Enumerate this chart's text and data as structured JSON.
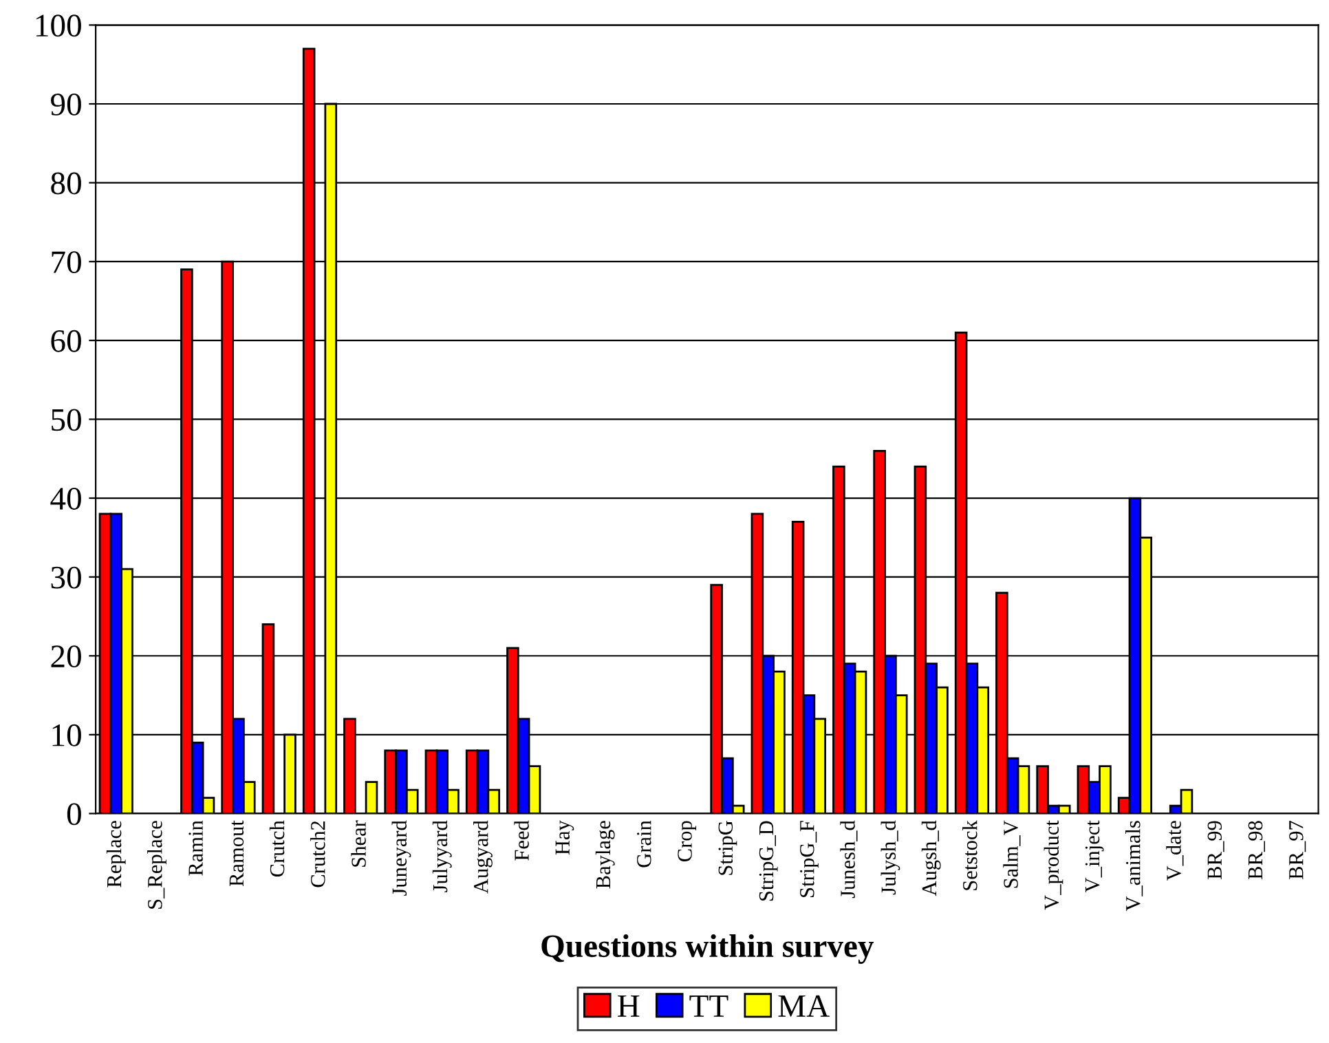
{
  "chart_data": {
    "type": "bar",
    "xlabel": "Questions within survey",
    "categories": [
      "Replace",
      "S_Replace",
      "Ramin",
      "Ramout",
      "Crutch",
      "Crutch2",
      "Shear",
      "Juneyard",
      "Julyyard",
      "Augyard",
      "Feed",
      "Hay",
      "Baylage",
      "Grain",
      "Crop",
      "StripG",
      "StripG_D",
      "StripG_F",
      "Junesh_d",
      "Julysh_d",
      "Augsh_d",
      "Setstock",
      "Salm_V",
      "V_product",
      "V_inject",
      "V_animals",
      "V_date",
      "BR_99",
      "BR_98",
      "BR_97"
    ],
    "series": [
      {
        "name": "H",
        "color": "#ff0000",
        "values": [
          38,
          null,
          69,
          70,
          24,
          97,
          12,
          8,
          8,
          8,
          21,
          null,
          null,
          null,
          null,
          29,
          38,
          37,
          44,
          46,
          44,
          61,
          28,
          6,
          6,
          2,
          null,
          null,
          null,
          null
        ]
      },
      {
        "name": "TT",
        "color": "#0000ff",
        "values": [
          38,
          null,
          9,
          12,
          null,
          null,
          null,
          8,
          8,
          8,
          12,
          null,
          null,
          null,
          null,
          7,
          20,
          15,
          19,
          20,
          19,
          19,
          7,
          1,
          4,
          40,
          1,
          null,
          null,
          null
        ]
      },
      {
        "name": "MA",
        "color": "#ffff00",
        "values": [
          31,
          null,
          2,
          4,
          10,
          90,
          4,
          3,
          3,
          3,
          6,
          null,
          null,
          null,
          null,
          1,
          18,
          12,
          18,
          15,
          16,
          16,
          6,
          1,
          6,
          35,
          3,
          null,
          null,
          null
        ]
      }
    ],
    "ylim": [
      0,
      100
    ],
    "yticks": [
      0,
      10,
      20,
      30,
      40,
      50,
      60,
      70,
      80,
      90,
      100
    ],
    "grid": "y",
    "legend": "bottom"
  }
}
